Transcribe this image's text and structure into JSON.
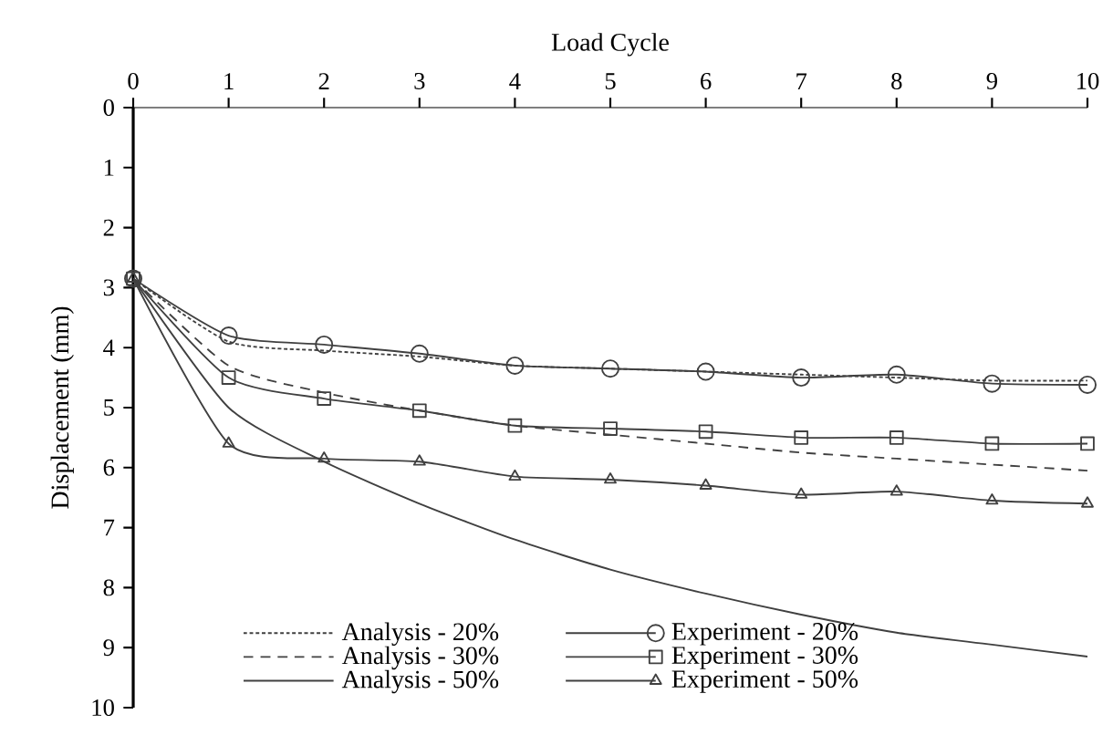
{
  "chart_data": {
    "type": "line",
    "xlabel": "Load Cycle",
    "ylabel": "Displacement (mm)",
    "x": [
      0,
      1,
      2,
      3,
      4,
      5,
      6,
      7,
      8,
      9,
      10
    ],
    "xlim": [
      0,
      10
    ],
    "xticks": [
      0,
      1,
      2,
      3,
      4,
      5,
      6,
      7,
      8,
      9,
      10
    ],
    "ylim": [
      10,
      0
    ],
    "yticks": [
      0,
      1,
      2,
      3,
      4,
      5,
      6,
      7,
      8,
      9,
      10
    ],
    "grid": false,
    "legend": "bottom",
    "series": [
      {
        "name": "Analysis - 20%",
        "color": "#404040",
        "marker": "none",
        "line_style": "dotted",
        "values": [
          2.85,
          3.9,
          4.05,
          4.15,
          4.3,
          4.35,
          4.4,
          4.45,
          4.5,
          4.55,
          4.55
        ]
      },
      {
        "name": "Experiment - 20%",
        "color": "#404040",
        "marker": "circle",
        "line_style": "solid",
        "values": [
          2.85,
          3.8,
          3.95,
          4.1,
          4.3,
          4.35,
          4.4,
          4.5,
          4.45,
          4.6,
          4.62
        ]
      },
      {
        "name": "Analysis - 30%",
        "color": "#404040",
        "marker": "none",
        "line_style": "dashed",
        "values": [
          2.85,
          4.3,
          4.75,
          5.05,
          5.3,
          5.45,
          5.6,
          5.75,
          5.85,
          5.95,
          6.05
        ]
      },
      {
        "name": "Experiment - 30%",
        "color": "#404040",
        "marker": "square",
        "line_style": "solid",
        "values": [
          2.85,
          4.5,
          4.85,
          5.05,
          5.3,
          5.35,
          5.4,
          5.5,
          5.5,
          5.6,
          5.6
        ]
      },
      {
        "name": "Analysis - 50%",
        "color": "#404040",
        "marker": "none",
        "line_style": "solid",
        "values": [
          2.85,
          5.0,
          5.9,
          6.6,
          7.2,
          7.7,
          8.1,
          8.45,
          8.75,
          8.95,
          9.15
        ]
      },
      {
        "name": "Experiment - 50%",
        "color": "#404040",
        "marker": "triangle",
        "line_style": "solid",
        "values": [
          2.85,
          5.6,
          5.85,
          5.9,
          6.15,
          6.2,
          6.3,
          6.45,
          6.4,
          6.55,
          6.6
        ]
      }
    ]
  }
}
